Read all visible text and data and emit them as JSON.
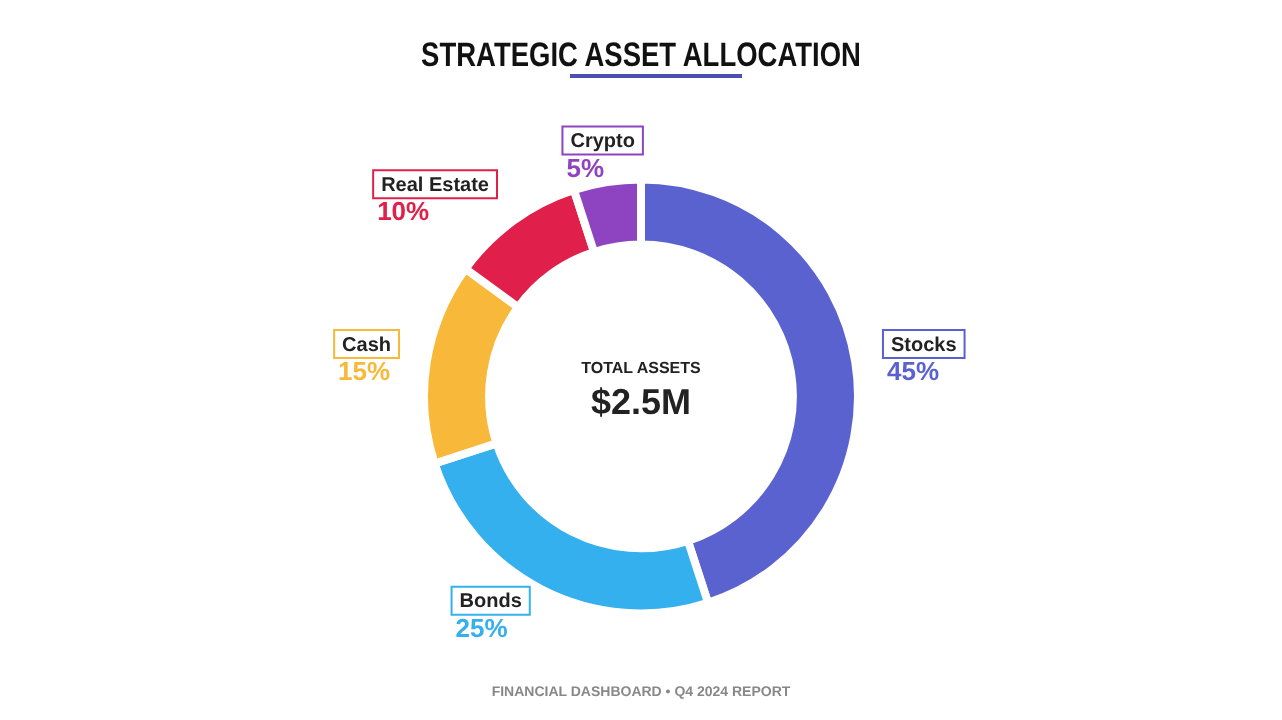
{
  "chart_data": {
    "type": "donut",
    "title": "STRATEGIC ASSET ALLOCATION",
    "categories": [
      "Stocks",
      "Bonds",
      "Cash",
      "Real Estate",
      "Crypto"
    ],
    "values": [
      45,
      25,
      15,
      10,
      5
    ],
    "value_labels": [
      "45%",
      "25%",
      "15%",
      "10%",
      "5%"
    ],
    "colors": [
      "#5a62d0",
      "#35b0ee",
      "#f8b93a",
      "#e0204a",
      "#8e44c0"
    ],
    "annotations": [
      "TOTAL ASSETS",
      "$2.5M",
      "FINANCIAL DASHBOARD • Q4 2024 REPORT"
    ],
    "legend": false
  }
}
